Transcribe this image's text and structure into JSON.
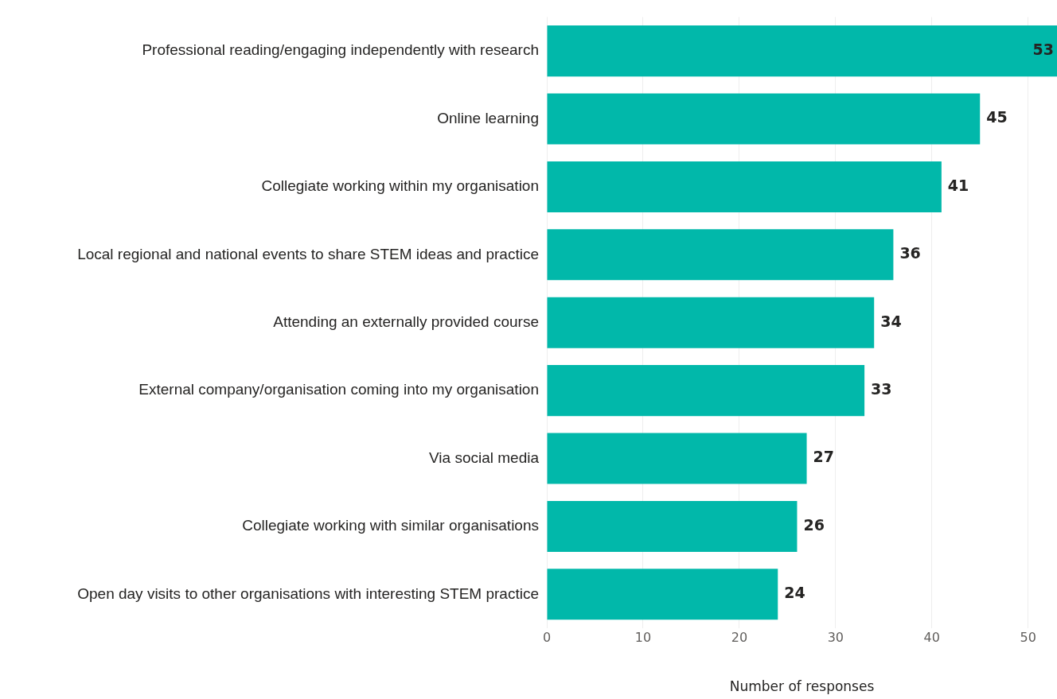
{
  "chart_data": {
    "type": "bar",
    "orientation": "horizontal",
    "xlabel": "Number of responses",
    "categories": [
      "Professional reading/engaging independently with research",
      "Online learning",
      "Collegiate working within my organisation",
      "Local regional and national events to share STEM ideas and practice",
      "Attending an externally provided course",
      "External company/organisation coming into my organisation",
      "Via social media",
      "Collegiate working with similar organisations",
      "Open day visits to other organisations with interesting STEM practice"
    ],
    "values": [
      53,
      45,
      41,
      36,
      34,
      33,
      27,
      26,
      24
    ],
    "color": "#01b8aa",
    "xlim": [
      0,
      53
    ],
    "xticks": [
      0,
      10,
      20,
      30,
      40,
      50
    ],
    "grid": "x",
    "data_labels": true,
    "legend": false
  }
}
